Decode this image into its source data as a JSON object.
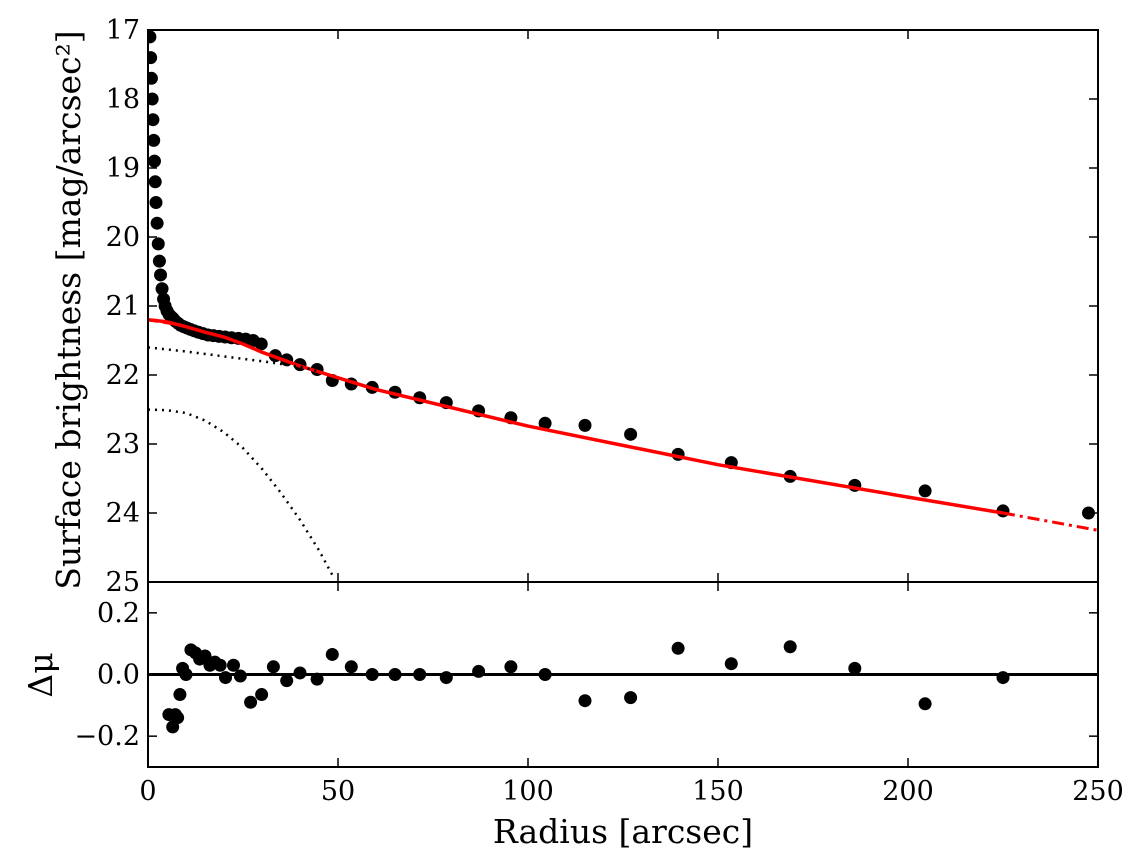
{
  "chart_data": [
    {
      "type": "scatter",
      "panel": "main",
      "xlim": [
        0,
        250
      ],
      "ylim": [
        25,
        17
      ],
      "y_inverted": true,
      "xlabel": "",
      "ylabel": "Surface brightness [mag/arcsec²]",
      "yticks": [
        "17",
        "18",
        "19",
        "20",
        "21",
        "22",
        "23",
        "24",
        "25"
      ],
      "xticks": [
        "0",
        "50",
        "100",
        "150",
        "200",
        "250"
      ],
      "grid": false,
      "legend": "none",
      "colors": {
        "points": "#000000",
        "fit": "#ff0000",
        "components": "#000000"
      },
      "series": [
        {
          "kind": "points",
          "x": [
            0.5,
            0.7,
            0.9,
            1.1,
            1.3,
            1.5,
            1.7,
            1.9,
            2.1,
            2.4,
            2.7,
            3.0,
            3.3,
            3.7,
            4.1,
            4.5,
            5.0,
            5.5,
            6.0,
            6.6,
            7.2,
            7.9,
            8.6,
            9.4,
            10.3,
            11.2,
            12.2,
            13.3,
            14.5,
            15.8,
            17.2,
            18.7,
            20.3,
            22.0,
            23.8,
            25.7,
            27.7,
            29.8,
            33.5,
            36.5,
            40.0,
            44.5,
            48.5,
            53.5,
            59.0,
            65.0,
            71.5,
            78.5,
            87.0,
            95.5,
            104.5,
            115.0,
            127.0,
            139.5,
            153.5,
            169.0,
            186.0,
            204.5,
            225.0,
            247.5
          ],
          "y": [
            17.1,
            17.4,
            17.7,
            18.0,
            18.3,
            18.6,
            18.9,
            19.2,
            19.5,
            19.8,
            20.1,
            20.35,
            20.55,
            20.75,
            20.9,
            21.0,
            21.07,
            21.12,
            21.15,
            21.18,
            21.22,
            21.25,
            21.28,
            21.3,
            21.32,
            21.34,
            21.36,
            21.38,
            21.4,
            21.42,
            21.43,
            21.44,
            21.45,
            21.46,
            21.47,
            21.48,
            21.5,
            21.55,
            21.72,
            21.78,
            21.85,
            21.92,
            22.08,
            22.13,
            22.18,
            22.25,
            22.33,
            22.4,
            22.52,
            22.62,
            22.7,
            22.73,
            22.86,
            23.15,
            23.27,
            23.47,
            23.6,
            23.68,
            23.97,
            24.0
          ]
        },
        {
          "kind": "fit-solid",
          "x": [
            0,
            2,
            5,
            10,
            15,
            20,
            25,
            30,
            40,
            60,
            100,
            150,
            200,
            225
          ],
          "y": [
            21.2,
            21.21,
            21.23,
            21.3,
            21.38,
            21.45,
            21.55,
            21.67,
            21.87,
            22.21,
            22.74,
            23.3,
            23.77,
            24.0
          ]
        },
        {
          "kind": "fit-dashed",
          "x": [
            225,
            250
          ],
          "y": [
            24.0,
            24.25
          ]
        },
        {
          "kind": "component-dotted",
          "x": [
            0,
            10,
            20,
            30,
            40,
            45
          ],
          "y": [
            21.6,
            21.66,
            21.73,
            21.8,
            21.88,
            21.95
          ]
        },
        {
          "kind": "component-dotted",
          "x": [
            0,
            5,
            10,
            15,
            20,
            25,
            30,
            35,
            40,
            45,
            49
          ],
          "y": [
            22.5,
            22.51,
            22.55,
            22.66,
            22.83,
            23.06,
            23.36,
            23.71,
            24.1,
            24.54,
            24.95
          ]
        }
      ]
    },
    {
      "type": "scatter",
      "panel": "residual",
      "xlim": [
        0,
        250
      ],
      "ylim": [
        -0.3,
        0.3
      ],
      "xlabel": "Radius [arcsec]",
      "ylabel": "Δμ",
      "xticks": [
        "0",
        "50",
        "100",
        "150",
        "200",
        "250"
      ],
      "yticks": [
        "0.2",
        "0.0",
        "−0.2"
      ],
      "grid": false,
      "legend": "none",
      "zero_line": 0,
      "series": [
        {
          "kind": "points",
          "x": [
            5.5,
            6.5,
            7.2,
            7.8,
            8.4,
            9.1,
            10.0,
            11.3,
            12.5,
            13.6,
            15.0,
            16.3,
            17.6,
            19.0,
            20.4,
            22.5,
            24.3,
            27.0,
            29.9,
            33.0,
            36.5,
            40.0,
            44.5,
            48.5,
            53.5,
            59.0,
            65.0,
            71.5,
            78.5,
            87.0,
            95.5,
            104.5,
            115.0,
            127.0,
            139.5,
            153.5,
            169.0,
            186.0,
            204.5,
            225.0
          ],
          "y": [
            -0.13,
            -0.17,
            -0.13,
            -0.14,
            -0.065,
            0.02,
            0.0,
            0.08,
            0.07,
            0.05,
            0.06,
            0.03,
            0.04,
            0.03,
            -0.01,
            0.03,
            -0.005,
            -0.09,
            -0.065,
            0.025,
            -0.02,
            0.005,
            -0.015,
            0.065,
            0.025,
            0.0,
            0.0,
            0.0,
            -0.01,
            0.01,
            0.025,
            0.0,
            -0.085,
            -0.075,
            0.085,
            0.035,
            0.09,
            0.02,
            -0.095,
            -0.01
          ]
        }
      ]
    }
  ]
}
